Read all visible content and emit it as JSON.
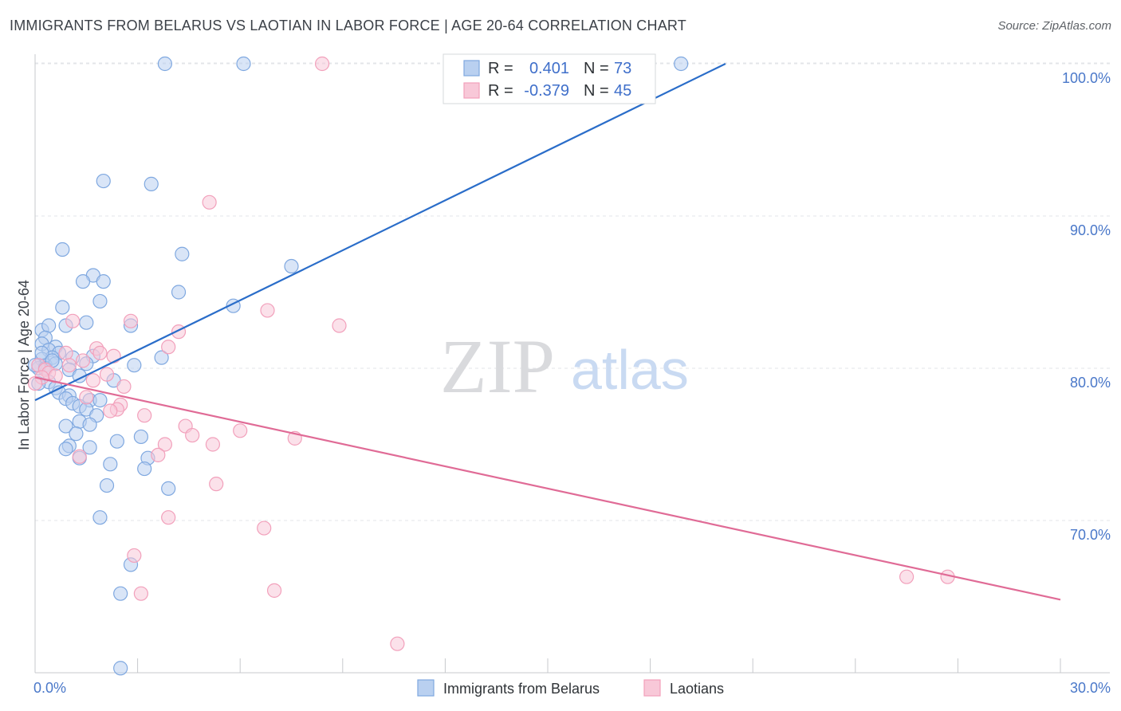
{
  "title": "IMMIGRANTS FROM BELARUS VS LAOTIAN IN LABOR FORCE | AGE 20-64 CORRELATION CHART",
  "source": "Source: ZipAtlas.com",
  "watermark": {
    "zip": "ZIP",
    "atlas": "atlas"
  },
  "legend_top": {
    "rows": [
      {
        "r_label": "R =",
        "r_value": "0.401",
        "n_label": "N =",
        "n_value": "73"
      },
      {
        "r_label": "R =",
        "r_value": "-0.379",
        "n_label": "N =",
        "n_value": "45"
      }
    ]
  },
  "chart_data": {
    "type": "scatter",
    "title": "IMMIGRANTS FROM BELARUS VS LAOTIAN IN LABOR FORCE | AGE 20-64 CORRELATION CHART",
    "xlabel": "",
    "ylabel": "In Labor Force | Age 20-64",
    "xlim": [
      0,
      30
    ],
    "ylim": [
      60,
      101
    ],
    "x_tick_labels": [
      {
        "value": 0,
        "label": "0.0%"
      },
      {
        "value": 30,
        "label": "30.0%"
      }
    ],
    "y_tick_labels": [
      {
        "value": 70,
        "label": "70.0%"
      },
      {
        "value": 80,
        "label": "80.0%"
      },
      {
        "value": 90,
        "label": "90.0%"
      },
      {
        "value": 100,
        "label": "100.0%"
      }
    ],
    "grid": true,
    "legend_position": "bottom-center",
    "series": [
      {
        "name": "Immigrants from Belarus",
        "color": "#7fa8e0",
        "fill": "#b9d0f0",
        "trend_color": "#2a6dc9",
        "r": 0.401,
        "n": 73,
        "trend": [
          [
            0,
            77.9
          ],
          [
            20.2,
            100.0
          ]
        ],
        "points": [
          [
            3.8,
            100.0
          ],
          [
            6.1,
            100.0
          ],
          [
            18.9,
            100.0
          ],
          [
            2.0,
            92.3
          ],
          [
            3.4,
            92.1
          ],
          [
            0.8,
            87.8
          ],
          [
            4.3,
            87.5
          ],
          [
            1.7,
            86.1
          ],
          [
            1.4,
            85.7
          ],
          [
            2.0,
            85.7
          ],
          [
            7.5,
            86.7
          ],
          [
            4.2,
            85.0
          ],
          [
            1.9,
            84.4
          ],
          [
            5.8,
            84.1
          ],
          [
            0.8,
            84.0
          ],
          [
            0.2,
            82.5
          ],
          [
            0.4,
            82.8
          ],
          [
            1.5,
            83.0
          ],
          [
            0.9,
            82.8
          ],
          [
            2.8,
            82.8
          ],
          [
            0.3,
            82.0
          ],
          [
            0.2,
            81.6
          ],
          [
            0.6,
            81.4
          ],
          [
            0.4,
            81.2
          ],
          [
            0.7,
            81.0
          ],
          [
            0.5,
            80.7
          ],
          [
            1.1,
            80.7
          ],
          [
            1.7,
            80.8
          ],
          [
            3.7,
            80.7
          ],
          [
            0.2,
            80.6
          ],
          [
            0.3,
            80.2
          ],
          [
            0.6,
            80.3
          ],
          [
            1.5,
            80.3
          ],
          [
            2.9,
            80.2
          ],
          [
            0.1,
            80.0
          ],
          [
            1.0,
            79.9
          ],
          [
            1.3,
            79.5
          ],
          [
            2.3,
            79.2
          ],
          [
            0.4,
            79.1
          ],
          [
            0.6,
            78.7
          ],
          [
            0.7,
            78.4
          ],
          [
            1.0,
            78.2
          ],
          [
            0.9,
            78.0
          ],
          [
            1.6,
            77.9
          ],
          [
            1.1,
            77.7
          ],
          [
            1.3,
            77.5
          ],
          [
            1.9,
            77.9
          ],
          [
            1.5,
            77.3
          ],
          [
            1.8,
            76.9
          ],
          [
            1.3,
            76.5
          ],
          [
            1.6,
            76.3
          ],
          [
            0.9,
            76.2
          ],
          [
            1.2,
            75.7
          ],
          [
            3.1,
            75.5
          ],
          [
            2.4,
            75.2
          ],
          [
            1.0,
            74.9
          ],
          [
            0.9,
            74.7
          ],
          [
            1.6,
            74.8
          ],
          [
            1.3,
            74.1
          ],
          [
            3.3,
            74.1
          ],
          [
            2.2,
            73.7
          ],
          [
            3.2,
            73.4
          ],
          [
            2.1,
            72.3
          ],
          [
            3.9,
            72.1
          ],
          [
            1.9,
            70.2
          ],
          [
            2.8,
            67.1
          ],
          [
            2.5,
            65.2
          ],
          [
            2.5,
            60.3
          ],
          [
            0.0,
            80.2
          ],
          [
            0.1,
            79.0
          ],
          [
            0.3,
            80.0
          ],
          [
            0.2,
            81.0
          ],
          [
            0.5,
            80.5
          ]
        ]
      },
      {
        "name": "Laotians",
        "color": "#f2a0bb",
        "fill": "#f8c8d8",
        "trend_color": "#e06b96",
        "r": -0.379,
        "n": 45,
        "trend": [
          [
            0,
            79.4
          ],
          [
            30,
            64.8
          ]
        ],
        "points": [
          [
            8.4,
            100.0
          ],
          [
            5.1,
            90.9
          ],
          [
            6.8,
            83.8
          ],
          [
            2.8,
            83.1
          ],
          [
            8.9,
            82.8
          ],
          [
            4.2,
            82.4
          ],
          [
            1.1,
            83.1
          ],
          [
            3.9,
            81.4
          ],
          [
            1.8,
            81.3
          ],
          [
            1.9,
            81.0
          ],
          [
            2.3,
            80.8
          ],
          [
            1.4,
            80.5
          ],
          [
            0.9,
            81.0
          ],
          [
            0.1,
            80.2
          ],
          [
            0.3,
            79.9
          ],
          [
            0.4,
            79.7
          ],
          [
            0.2,
            79.4
          ],
          [
            0.6,
            79.5
          ],
          [
            2.1,
            79.6
          ],
          [
            1.7,
            79.2
          ],
          [
            2.6,
            78.8
          ],
          [
            0.0,
            79.0
          ],
          [
            1.5,
            78.1
          ],
          [
            2.5,
            77.6
          ],
          [
            2.4,
            77.3
          ],
          [
            2.2,
            77.2
          ],
          [
            3.2,
            76.9
          ],
          [
            4.4,
            76.2
          ],
          [
            6.0,
            75.9
          ],
          [
            4.6,
            75.6
          ],
          [
            7.6,
            75.4
          ],
          [
            3.8,
            75.0
          ],
          [
            5.2,
            75.0
          ],
          [
            3.6,
            74.3
          ],
          [
            1.3,
            74.2
          ],
          [
            5.3,
            72.4
          ],
          [
            3.9,
            70.2
          ],
          [
            6.7,
            69.5
          ],
          [
            2.9,
            67.7
          ],
          [
            3.1,
            65.2
          ],
          [
            7.0,
            65.4
          ],
          [
            10.6,
            61.9
          ],
          [
            25.5,
            66.3
          ],
          [
            26.7,
            66.3
          ],
          [
            1.0,
            80.2
          ]
        ]
      }
    ]
  }
}
